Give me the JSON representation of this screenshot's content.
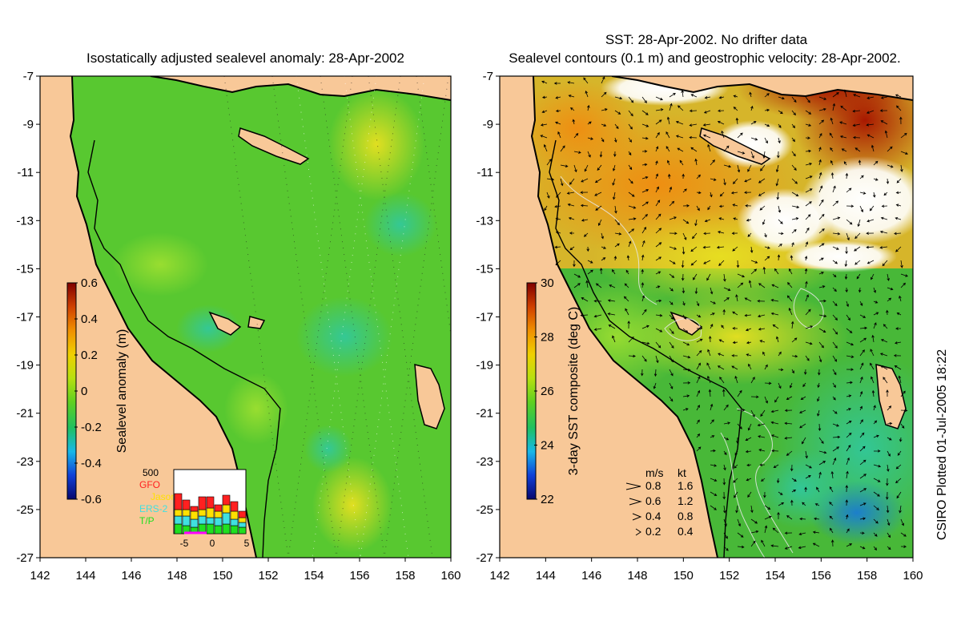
{
  "left_panel": {
    "title": "Isostatically adjusted sealevel anomaly: 28-Apr-2002",
    "colorbar": {
      "label": "Sealevel anomaly (m)",
      "ticks": [
        "0.6",
        "0.4",
        "0.2",
        "0",
        "-0.2",
        "-0.4",
        "-0.6"
      ],
      "colors": [
        "#08086e",
        "#1040d8",
        "#18b8e8",
        "#20c060",
        "#60d020",
        "#b8e010",
        "#f0d000",
        "#f09000",
        "#d04000",
        "#800000"
      ]
    },
    "inset": {
      "count_label": "500",
      "satellites": [
        {
          "name": "GFO",
          "color": "#ff2020"
        },
        {
          "name": "Jason",
          "color": "#ffe000"
        },
        {
          "name": "ERS-2",
          "color": "#40e0e0"
        },
        {
          "name": "T/P",
          "color": "#20e020"
        }
      ],
      "x_ticks": [
        "-5",
        "0",
        "5"
      ]
    }
  },
  "right_panel": {
    "title_line1": "SST: 28-Apr-2002. No drifter data",
    "title_line2": "Sealevel contours (0.1 m) and geostrophic velocity: 28-Apr-2002.",
    "colorbar": {
      "label": "3-day SST composite (deg C)",
      "ticks": [
        "30",
        "28",
        "26",
        "24",
        "22"
      ],
      "colors": [
        "#08086e",
        "#1040d8",
        "#18b8e8",
        "#20c060",
        "#60d020",
        "#b8e010",
        "#f0d000",
        "#f09000",
        "#d04000",
        "#800000"
      ]
    },
    "velocity_scale": {
      "header_ms": "m/s",
      "header_kt": "kt",
      "rows": [
        {
          "ms": "0.8",
          "kt": "1.6"
        },
        {
          "ms": "0.6",
          "kt": "1.2"
        },
        {
          "ms": "0.4",
          "kt": "0.8"
        },
        {
          "ms": "0.2",
          "kt": "0.4"
        }
      ]
    }
  },
  "axes": {
    "lat_ticks": [
      "-7",
      "-9",
      "-11",
      "-13",
      "-15",
      "-17",
      "-19",
      "-21",
      "-23",
      "-25",
      "-27"
    ],
    "lon_ticks": [
      "142",
      "144",
      "146",
      "148",
      "150",
      "152",
      "154",
      "156",
      "158",
      "160"
    ]
  },
  "credit": "CSIRO Plotted 01-Jul-2005 18:22",
  "colors": {
    "land": "#f8c898",
    "sea_green": "#58c830",
    "warm": "#f0a820",
    "hot": "#a01c00",
    "cloud": "#ffffff"
  }
}
